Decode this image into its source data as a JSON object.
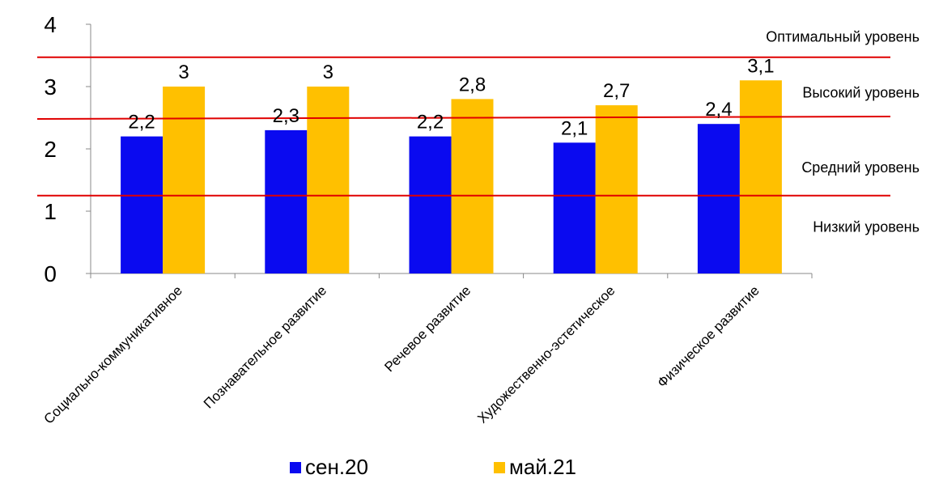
{
  "chart_data": {
    "type": "bar",
    "categories": [
      "Социально-коммуникативное",
      "Познавательное  развитие",
      "Речевое  развитие",
      "Художественно-эстетическое",
      "Физическое  развитие"
    ],
    "series": [
      {
        "name": "сен.20",
        "color": "#0a0af0",
        "values": [
          2.2,
          2.3,
          2.2,
          2.1,
          2.4
        ],
        "labels": [
          "2,2",
          "2,3",
          "2,2",
          "2,1",
          "2,4"
        ]
      },
      {
        "name": "май.21",
        "color": "#ffc000",
        "values": [
          3,
          3,
          2.8,
          2.7,
          3.1
        ],
        "labels": [
          "3",
          "3",
          "2,8",
          "2,7",
          "3,1"
        ]
      }
    ],
    "ylim": [
      0,
      4
    ],
    "yticks": [
      0,
      1,
      2,
      3,
      4
    ],
    "grid": false,
    "legend_position": "bottom",
    "reference_lines": [
      {
        "y": 3.47,
        "color": "#e00000",
        "start_value": 3.47,
        "end_value": 3.47
      },
      {
        "y": 2.5,
        "color": "#e00000",
        "start_value": 2.48,
        "end_value": 2.52
      },
      {
        "y": 1.25,
        "color": "#e00000",
        "start_value": 1.25,
        "end_value": 1.25
      }
    ],
    "level_labels": [
      {
        "text": "Оптимальный уровень",
        "y": 3.8
      },
      {
        "text": "Высокий уровень",
        "y": 2.9
      },
      {
        "text": "Средний  уровень",
        "y": 1.7
      },
      {
        "text": "Низкий   уровень",
        "y": 0.75
      }
    ]
  }
}
